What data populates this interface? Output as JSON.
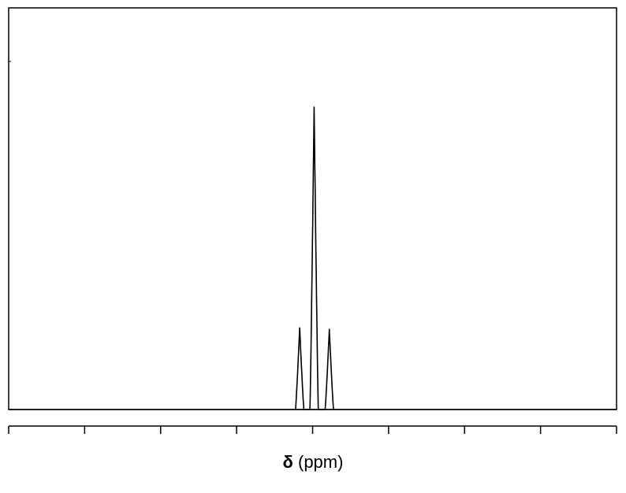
{
  "chart_data": {
    "type": "line",
    "title": "",
    "xlabel_symbol": "δ",
    "xlabel_unit": "(ppm)",
    "ylabel": "",
    "xlim": [
      0,
      8
    ],
    "ylim": [
      0,
      1
    ],
    "grid": false,
    "x_tick_count": 9,
    "x_tick_labels": [],
    "series": [
      {
        "peaks": [
          {
            "x": 3.83,
            "height": 0.27,
            "width": 0.05
          },
          {
            "x": 4.02,
            "height": 1.0,
            "width": 0.05
          },
          {
            "x": 4.22,
            "height": 0.265,
            "width": 0.05
          }
        ]
      }
    ]
  }
}
